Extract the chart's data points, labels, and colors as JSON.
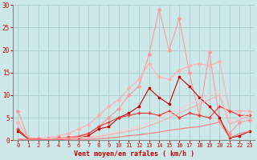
{
  "xlabel": "Vent moyen/en rafales ( km/h )",
  "background_color": "#cce8e8",
  "grid_color": "#aacccc",
  "x_values": [
    0,
    1,
    2,
    3,
    4,
    5,
    6,
    7,
    8,
    9,
    10,
    11,
    12,
    13,
    14,
    15,
    16,
    17,
    18,
    19,
    20,
    21,
    22,
    23
  ],
  "lines": [
    {
      "y": [
        6.5,
        0.5,
        0.3,
        0.3,
        0.5,
        0.7,
        1.0,
        1.5,
        3.0,
        5.0,
        7.0,
        10.0,
        12.0,
        19.0,
        29.0,
        20.0,
        27.0,
        15.0,
        5.5,
        19.5,
        4.5,
        1.5,
        4.0,
        4.5
      ],
      "color": "#ff9999",
      "lw": 0.8,
      "marker": "D",
      "ms": 2.0
    },
    {
      "y": [
        4.0,
        0.5,
        0.5,
        0.5,
        1.0,
        1.5,
        2.5,
        3.5,
        5.5,
        7.5,
        9.0,
        11.5,
        13.5,
        17.0,
        14.0,
        13.5,
        15.5,
        16.5,
        17.0,
        16.5,
        17.5,
        6.5,
        6.5,
        6.5
      ],
      "color": "#ffb0b0",
      "lw": 0.8,
      "marker": "D",
      "ms": 2.0
    },
    {
      "y": [
        2.0,
        0.3,
        0.2,
        0.2,
        0.3,
        0.5,
        0.5,
        1.0,
        2.5,
        3.0,
        5.0,
        6.0,
        7.5,
        11.5,
        9.5,
        8.0,
        14.0,
        12.0,
        9.5,
        7.5,
        5.0,
        0.5,
        1.0,
        2.0
      ],
      "color": "#cc0000",
      "lw": 0.8,
      "marker": "s",
      "ms": 2.0
    },
    {
      "y": [
        2.5,
        0.3,
        0.2,
        0.2,
        0.5,
        0.5,
        0.8,
        1.5,
        3.0,
        4.0,
        5.0,
        5.5,
        6.0,
        6.0,
        5.5,
        6.5,
        5.0,
        6.0,
        5.5,
        5.0,
        7.5,
        6.5,
        5.5,
        5.5
      ],
      "color": "#ee3333",
      "lw": 0.8,
      "marker": "+",
      "ms": 3.0
    },
    {
      "y": [
        0.5,
        0.2,
        0.2,
        0.3,
        0.4,
        0.5,
        0.6,
        0.7,
        1.0,
        1.5,
        2.0,
        2.5,
        3.0,
        4.0,
        5.0,
        6.0,
        7.0,
        8.0,
        9.0,
        10.0,
        11.0,
        4.0,
        5.0,
        6.0
      ],
      "color": "#ffcccc",
      "lw": 0.8,
      "marker": "None",
      "ms": 0
    },
    {
      "y": [
        0.3,
        0.1,
        0.1,
        0.2,
        0.3,
        0.4,
        0.5,
        0.6,
        0.8,
        1.2,
        1.6,
        2.0,
        2.5,
        3.2,
        4.0,
        5.0,
        6.0,
        7.0,
        8.0,
        9.0,
        10.0,
        3.5,
        4.5,
        5.5
      ],
      "color": "#ffaaaa",
      "lw": 0.8,
      "marker": "None",
      "ms": 0
    },
    {
      "y": [
        0.2,
        0.1,
        0.1,
        0.1,
        0.1,
        0.2,
        0.2,
        0.2,
        0.3,
        0.5,
        0.7,
        1.0,
        1.2,
        1.5,
        1.8,
        2.2,
        2.5,
        2.8,
        3.0,
        3.5,
        4.0,
        0.5,
        1.5,
        2.0
      ],
      "color": "#ff7777",
      "lw": 0.8,
      "marker": "None",
      "ms": 0
    }
  ],
  "ylim": [
    0,
    30
  ],
  "xlim": [
    0,
    23
  ],
  "yticks": [
    0,
    5,
    10,
    15,
    20,
    25,
    30
  ],
  "xticks": [
    0,
    1,
    2,
    3,
    4,
    5,
    6,
    7,
    8,
    9,
    10,
    11,
    12,
    13,
    14,
    15,
    16,
    17,
    18,
    19,
    20,
    21,
    22,
    23
  ],
  "tick_color": "#cc0000",
  "tick_fontsize": 5.0,
  "xlabel_fontsize": 6.0,
  "ytick_fontsize": 5.5
}
